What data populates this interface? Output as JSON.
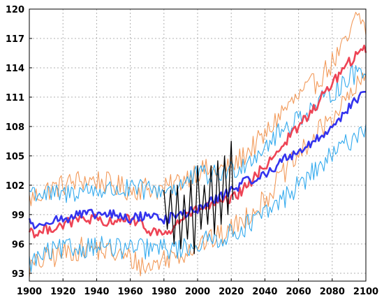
{
  "chart_data": {
    "type": "line",
    "title": "",
    "xlabel": "",
    "ylabel": "",
    "xlim": [
      1900,
      2100
    ],
    "ylim": [
      92.2,
      120
    ],
    "grid": true,
    "x_ticks": [
      1900,
      1920,
      1940,
      1960,
      1980,
      2000,
      2020,
      2040,
      2060,
      2080,
      2100
    ],
    "x_tick_labels": [
      "1900",
      "1920",
      "1940",
      "1960",
      "1980",
      "2000",
      "2020",
      "2040",
      "2060",
      "2080",
      "2100"
    ],
    "y_ticks": [
      93,
      96,
      99,
      102,
      105,
      108,
      111,
      114,
      117,
      120
    ],
    "y_tick_labels": [
      "93",
      "96",
      "99",
      "102",
      "105",
      "108",
      "111",
      "114",
      "117",
      "120"
    ],
    "series": [
      {
        "color": "#f29a5a",
        "role": "orange-upper",
        "x": [
          1900,
          1910,
          1920,
          1930,
          1940,
          1950,
          1960,
          1970,
          1980,
          1990,
          2000,
          2010,
          2020,
          2030,
          2040,
          2050,
          2060,
          2070,
          2080,
          2090,
          2095,
          2100
        ],
        "y": [
          100.5,
          101.5,
          102.0,
          102.5,
          102.5,
          102.0,
          101.5,
          101.8,
          101.5,
          102.5,
          103.5,
          103.5,
          103.8,
          105.5,
          107.0,
          109.5,
          111.0,
          112.5,
          114.5,
          117.0,
          119.5,
          118.0
        ]
      },
      {
        "color": "#f29a5a",
        "role": "orange-lower",
        "x": [
          1900,
          1910,
          1920,
          1930,
          1940,
          1950,
          1960,
          1970,
          1980,
          1990,
          2000,
          2010,
          2020,
          2030,
          2040,
          2050,
          2060,
          2070,
          2080,
          2090,
          2100
        ],
        "y": [
          93.5,
          94.5,
          95.0,
          95.5,
          95.5,
          95.0,
          94.5,
          93.5,
          94.5,
          95.0,
          96.0,
          96.5,
          97.5,
          99.0,
          100.5,
          103.0,
          105.0,
          107.0,
          109.0,
          111.0,
          113.0
        ]
      },
      {
        "color": "#33aaee",
        "role": "blue-upper",
        "x": [
          1900,
          1910,
          1920,
          1930,
          1940,
          1950,
          1960,
          1970,
          1980,
          1990,
          2000,
          2010,
          2020,
          2030,
          2040,
          2050,
          2060,
          2070,
          2080,
          2090,
          2100
        ],
        "y": [
          101.5,
          101.0,
          101.0,
          101.5,
          101.5,
          101.5,
          101.5,
          101.5,
          101.5,
          102.0,
          103.0,
          103.0,
          103.5,
          104.5,
          106.0,
          107.5,
          109.0,
          110.0,
          111.5,
          113.0,
          114.0
        ]
      },
      {
        "color": "#33aaee",
        "role": "blue-lower",
        "x": [
          1900,
          1910,
          1920,
          1930,
          1940,
          1950,
          1960,
          1970,
          1980,
          1990,
          2000,
          2010,
          2020,
          2030,
          2040,
          2050,
          2060,
          2070,
          2080,
          2090,
          2100
        ],
        "y": [
          94.0,
          95.0,
          95.5,
          95.5,
          96.0,
          95.5,
          95.5,
          95.5,
          95.5,
          95.5,
          96.0,
          96.5,
          97.0,
          98.0,
          99.0,
          100.5,
          102.0,
          103.5,
          105.0,
          106.5,
          108.0
        ]
      },
      {
        "color": "#ee4455",
        "role": "red-mean",
        "x": [
          1900,
          1905,
          1910,
          1920,
          1930,
          1940,
          1945,
          1950,
          1960,
          1970,
          1980,
          1985,
          1990,
          2000,
          2010,
          2020,
          2030,
          2040,
          2050,
          2060,
          2070,
          2080,
          2090,
          2100
        ],
        "y": [
          97.5,
          97.0,
          97.5,
          98.0,
          98.5,
          98.5,
          97.8,
          98.5,
          98.5,
          97.5,
          97.0,
          97.5,
          98.5,
          99.5,
          100.0,
          100.5,
          102.0,
          104.0,
          106.0,
          108.0,
          110.0,
          112.5,
          114.5,
          116.0
        ]
      },
      {
        "color": "#3333ee",
        "role": "blue-mean",
        "x": [
          1900,
          1905,
          1910,
          1920,
          1930,
          1940,
          1950,
          1960,
          1970,
          1980,
          1990,
          2000,
          2010,
          2020,
          2030,
          2040,
          2050,
          2060,
          2070,
          2080,
          2090,
          2100
        ],
        "y": [
          98.5,
          97.5,
          98.5,
          98.5,
          99.0,
          99.0,
          99.0,
          98.5,
          99.0,
          98.5,
          99.0,
          99.5,
          100.5,
          101.5,
          102.5,
          103.0,
          104.5,
          105.5,
          106.5,
          108.0,
          110.0,
          111.5
        ]
      },
      {
        "color": "#000000",
        "role": "observed",
        "x": [
          1980,
          1982,
          1984,
          1986,
          1988,
          1990,
          1992,
          1994,
          1996,
          1998,
          2000,
          2002,
          2004,
          2006,
          2008,
          2010,
          2012,
          2014,
          2016,
          2018,
          2020,
          2021
        ],
        "y": [
          101.5,
          97.5,
          101.5,
          96.0,
          102.0,
          95.5,
          101.0,
          96.5,
          102.5,
          95.0,
          104.0,
          97.5,
          102.0,
          98.0,
          104.0,
          97.0,
          104.5,
          98.0,
          105.0,
          99.0,
          106.5,
          100.5
        ]
      }
    ]
  }
}
